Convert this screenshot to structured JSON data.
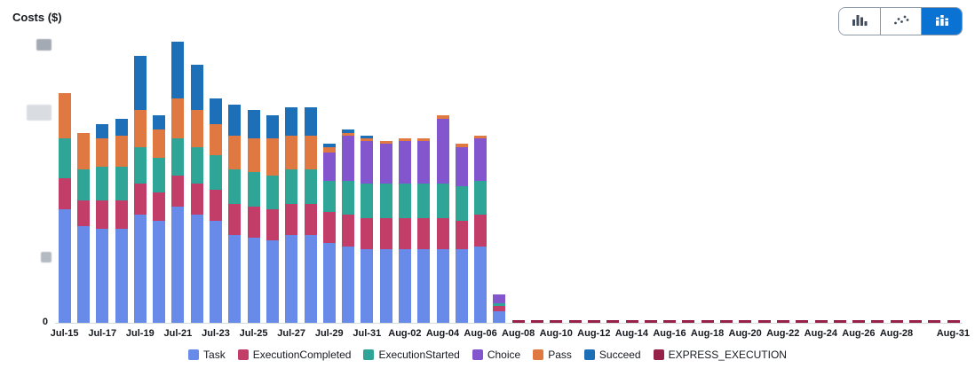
{
  "header": {
    "title": "Costs ($)"
  },
  "toolbar": {
    "selected_index": 2,
    "buttons": [
      {
        "name": "bar-chart-view"
      },
      {
        "name": "line-chart-view"
      },
      {
        "name": "stacked-bar-chart-view"
      }
    ]
  },
  "chart_data": {
    "type": "bar",
    "stacked": true,
    "title": "Costs ($)",
    "ylabel": "Costs ($)",
    "ylim": [
      0,
      100
    ],
    "y_axis": {
      "visible_labels": [
        "0"
      ],
      "redacted_label_count": 3
    },
    "legend_position": "bottom",
    "grid": false,
    "categories": [
      "Jul-15",
      "Jul-16",
      "Jul-17",
      "Jul-18",
      "Jul-19",
      "Jul-20",
      "Jul-21",
      "Jul-22",
      "Jul-23",
      "Jul-24",
      "Jul-25",
      "Jul-26",
      "Jul-27",
      "Jul-28",
      "Jul-29",
      "Jul-30",
      "Jul-31",
      "Aug-01",
      "Aug-02",
      "Aug-03",
      "Aug-04",
      "Aug-05",
      "Aug-06",
      "Aug-07",
      "Aug-08",
      "Aug-09",
      "Aug-10",
      "Aug-11",
      "Aug-12",
      "Aug-13",
      "Aug-14",
      "Aug-15",
      "Aug-16",
      "Aug-17",
      "Aug-18",
      "Aug-19",
      "Aug-20",
      "Aug-21",
      "Aug-22",
      "Aug-23",
      "Aug-24",
      "Aug-25",
      "Aug-26",
      "Aug-27",
      "Aug-28",
      "Aug-29",
      "Aug-30",
      "Aug-31"
    ],
    "x_tick_labels": [
      {
        "label": "Jul-15",
        "index": 0
      },
      {
        "label": "Jul-17",
        "index": 2
      },
      {
        "label": "Jul-19",
        "index": 4
      },
      {
        "label": "Jul-21",
        "index": 6
      },
      {
        "label": "Jul-23",
        "index": 8
      },
      {
        "label": "Jul-25",
        "index": 10
      },
      {
        "label": "Jul-27",
        "index": 12
      },
      {
        "label": "Jul-29",
        "index": 14
      },
      {
        "label": "Jul-31",
        "index": 16
      },
      {
        "label": "Aug-02",
        "index": 18
      },
      {
        "label": "Aug-04",
        "index": 20
      },
      {
        "label": "Aug-06",
        "index": 22
      },
      {
        "label": "Aug-08",
        "index": 24
      },
      {
        "label": "Aug-10",
        "index": 26
      },
      {
        "label": "Aug-12",
        "index": 28
      },
      {
        "label": "Aug-14",
        "index": 30
      },
      {
        "label": "Aug-16",
        "index": 32
      },
      {
        "label": "Aug-18",
        "index": 34
      },
      {
        "label": "Aug-20",
        "index": 36
      },
      {
        "label": "Aug-22",
        "index": 38
      },
      {
        "label": "Aug-24",
        "index": 40
      },
      {
        "label": "Aug-26",
        "index": 42
      },
      {
        "label": "Aug-28",
        "index": 44
      },
      {
        "label": "Aug-31",
        "index": 47
      }
    ],
    "series": [
      {
        "name": "Task",
        "color": "#688ae8",
        "values": [
          40,
          34,
          33,
          33,
          38,
          36,
          41,
          38,
          36,
          31,
          30,
          29,
          31,
          31,
          28,
          27,
          26,
          26,
          26,
          26,
          26,
          26,
          27,
          4,
          0,
          0,
          0,
          0,
          0,
          0,
          0,
          0,
          0,
          0,
          0,
          0,
          0,
          0,
          0,
          0,
          0,
          0,
          0,
          0,
          0,
          0,
          0,
          0
        ]
      },
      {
        "name": "ExecutionCompleted",
        "color": "#c33d69",
        "values": [
          11,
          9,
          10,
          10,
          11,
          10,
          11,
          11,
          11,
          11,
          11,
          11,
          11,
          11,
          11,
          11,
          11,
          11,
          11,
          11,
          11,
          10,
          11,
          2,
          0,
          0,
          0,
          0,
          0,
          0,
          0,
          0,
          0,
          0,
          0,
          0,
          0,
          0,
          0,
          0,
          0,
          0,
          0,
          0,
          0,
          0,
          0,
          0
        ]
      },
      {
        "name": "ExecutionStarted",
        "color": "#2ea597",
        "values": [
          14,
          11,
          12,
          12,
          13,
          12,
          13,
          13,
          12,
          12,
          12,
          12,
          12,
          12,
          11,
          12,
          12,
          12,
          12,
          12,
          12,
          12,
          12,
          1,
          0,
          0,
          0,
          0,
          0,
          0,
          0,
          0,
          0,
          0,
          0,
          0,
          0,
          0,
          0,
          0,
          0,
          0,
          0,
          0,
          0,
          0,
          0,
          0
        ]
      },
      {
        "name": "Choice",
        "color": "#8456ce",
        "values": [
          0,
          0,
          0,
          0,
          0,
          0,
          0,
          0,
          0,
          0,
          0,
          0,
          0,
          0,
          10,
          16,
          15,
          14,
          15,
          15,
          23,
          14,
          15,
          3,
          0,
          0,
          0,
          0,
          0,
          0,
          0,
          0,
          0,
          0,
          0,
          0,
          0,
          0,
          0,
          0,
          0,
          0,
          0,
          0,
          0,
          0,
          0,
          0
        ]
      },
      {
        "name": "Pass",
        "color": "#e07941",
        "values": [
          16,
          13,
          10,
          11,
          13,
          10,
          14,
          13,
          11,
          12,
          12,
          13,
          12,
          12,
          2,
          1,
          1,
          1,
          1,
          1,
          1,
          1,
          1,
          0,
          0,
          0,
          0,
          0,
          0,
          0,
          0,
          0,
          0,
          0,
          0,
          0,
          0,
          0,
          0,
          0,
          0,
          0,
          0,
          0,
          0,
          0,
          0,
          0
        ]
      },
      {
        "name": "Succeed",
        "color": "#1d6fb8",
        "values": [
          0,
          0,
          5,
          6,
          19,
          5,
          20,
          16,
          9,
          11,
          10,
          8,
          10,
          10,
          1,
          1,
          1,
          0,
          0,
          0,
          0,
          0,
          0,
          0,
          0,
          0,
          0,
          0,
          0,
          0,
          0,
          0,
          0,
          0,
          0,
          0,
          0,
          0,
          0,
          0,
          0,
          0,
          0,
          0,
          0,
          0,
          0,
          0
        ]
      },
      {
        "name": "EXPRESS_EXECUTION",
        "color": "#962249",
        "values": [
          0,
          0,
          0,
          0,
          0,
          0,
          0,
          0,
          0,
          0,
          0,
          0,
          0,
          0,
          0,
          0,
          0,
          0,
          0,
          0,
          0,
          0,
          0,
          0,
          1,
          1,
          1,
          1,
          1,
          1,
          1,
          1,
          1,
          1,
          1,
          1,
          1,
          1,
          1,
          1,
          1,
          1,
          1,
          1,
          1,
          1,
          1,
          1
        ]
      }
    ]
  }
}
